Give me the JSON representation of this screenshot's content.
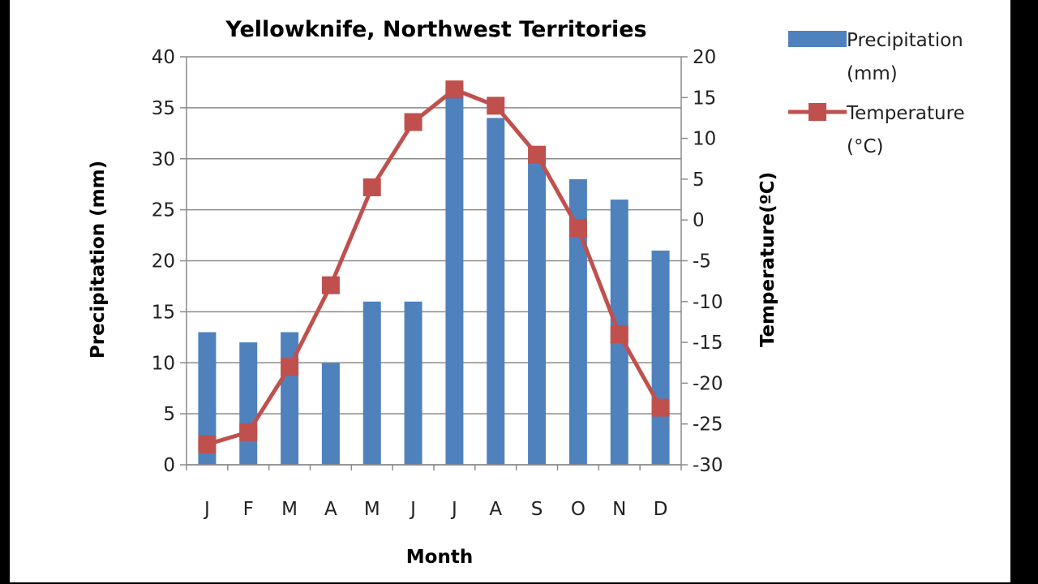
{
  "chart_data": {
    "type": "bar+line",
    "title": "Yellowknife, Northwest Territories",
    "xlabel": "Month",
    "ylabel_left": "Precipitation (mm)",
    "ylabel_right": "Temperature(ºC)",
    "categories": [
      "J",
      "F",
      "M",
      "A",
      "M",
      "J",
      "J",
      "A",
      "S",
      "O",
      "N",
      "D"
    ],
    "series": [
      {
        "name": "Precipitation (mm)",
        "type": "bar",
        "axis": "left",
        "color": "#4F81BD",
        "values": [
          13,
          12,
          13,
          10,
          16,
          16,
          37,
          34,
          30,
          28,
          26,
          21
        ]
      },
      {
        "name": "Temperature (°C)",
        "type": "line",
        "axis": "right",
        "color": "#C0504D",
        "marker": "square",
        "values": [
          -27.5,
          -26,
          -18,
          -8,
          4,
          12,
          16,
          14,
          8,
          -1,
          -14,
          -23
        ]
      }
    ],
    "ylim_left": [
      0,
      40
    ],
    "yticks_left": [
      "0",
      "5",
      "10",
      "15",
      "20",
      "25",
      "30",
      "35",
      "40"
    ],
    "ylim_right": [
      -30,
      20
    ],
    "yticks_right": [
      "-30",
      "-25",
      "-20",
      "-15",
      "-10",
      "-5",
      "0",
      "5",
      "10",
      "15",
      "20"
    ],
    "grid": true,
    "legend": {
      "placement": "right",
      "precip_line1": "Precipitation",
      "precip_line2": "(mm)",
      "temp_line1": "Temperature",
      "temp_line2": "(°C)"
    }
  }
}
